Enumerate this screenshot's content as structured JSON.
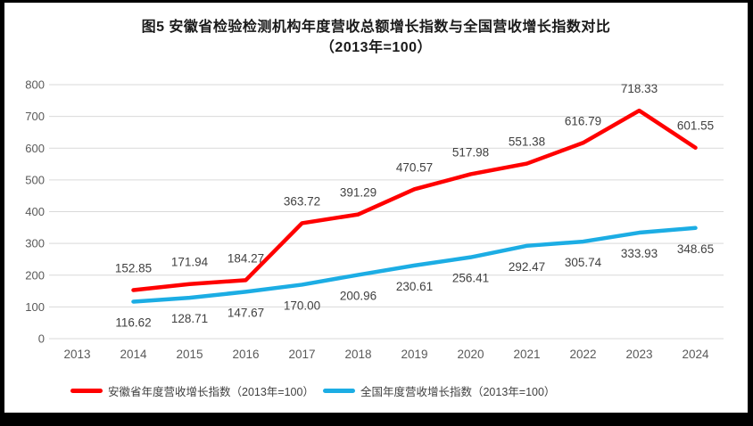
{
  "title": {
    "line1": "图5  安徽省检验检测机构年度营收总额增长指数与全国营收增长指数对比",
    "line2": "（2013年=100）"
  },
  "chart_data": {
    "type": "line",
    "categories": [
      "2013",
      "2014",
      "2015",
      "2016",
      "2017",
      "2018",
      "2019",
      "2020",
      "2021",
      "2022",
      "2023",
      "2024"
    ],
    "series": [
      {
        "name": "安徽省年度营收增长指数（2013年=100）",
        "color": "#ff0000",
        "label_position": "above",
        "values": [
          null,
          152.85,
          171.94,
          184.27,
          363.72,
          391.29,
          470.57,
          517.98,
          551.38,
          616.79,
          718.33,
          601.55
        ]
      },
      {
        "name": "全国年度营收增长指数（2013年=100）",
        "color": "#1cade4",
        "label_position": "below",
        "values": [
          null,
          116.62,
          128.71,
          147.67,
          170.0,
          200.96,
          230.61,
          256.41,
          292.47,
          305.74,
          333.93,
          348.65
        ]
      }
    ],
    "ylim": [
      0,
      800
    ],
    "yticks": [
      0,
      100,
      200,
      300,
      400,
      500,
      600,
      700,
      800
    ],
    "grid": "horizontal",
    "gridline_color": "#d9d9d9",
    "axis_text_color": "#595959",
    "data_label_color": "#404040",
    "data_label_decimals": 2,
    "legend_position": "bottom"
  }
}
